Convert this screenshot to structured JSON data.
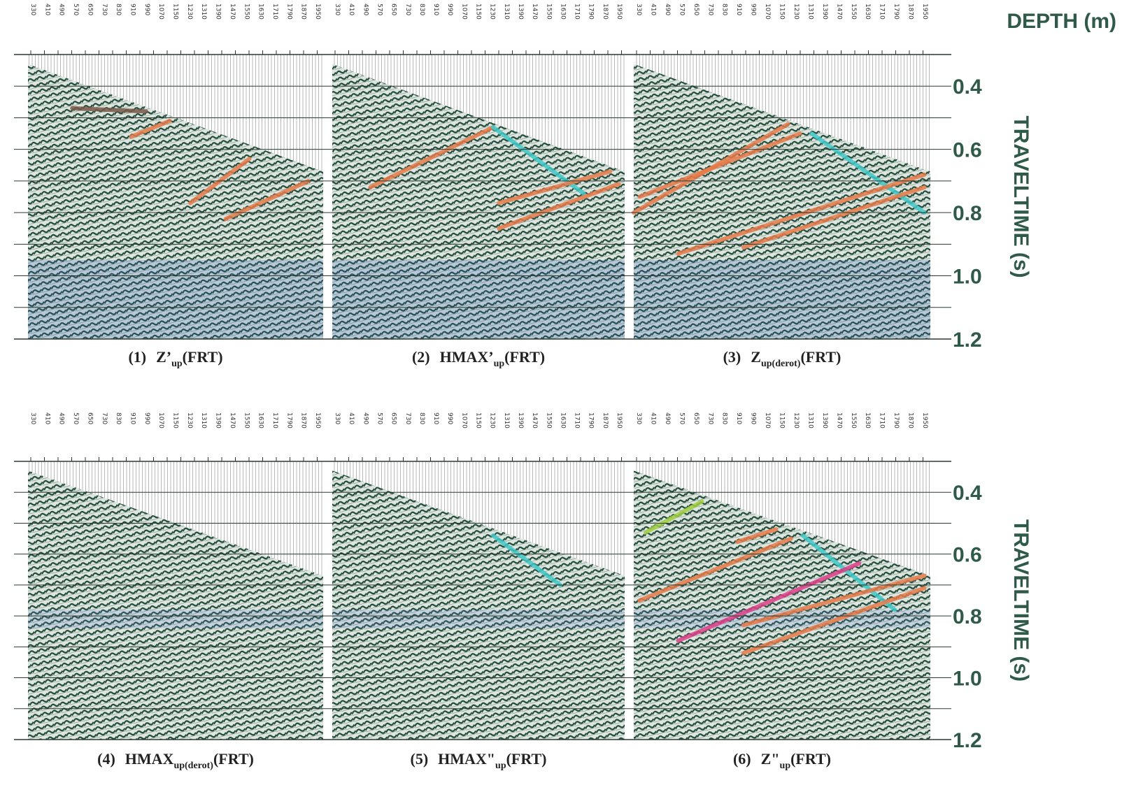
{
  "axis_titles": {
    "depth": "DEPTH (m)",
    "traveltime": "TRAVELTIME (s)"
  },
  "depth_labels": [
    "330",
    "410",
    "490",
    "570",
    "650",
    "730",
    "830",
    "910",
    "990",
    "1070",
    "1150",
    "1230",
    "1310",
    "1390",
    "1470",
    "1550",
    "1630",
    "1710",
    "1790",
    "1870",
    "1950"
  ],
  "time_labels": [
    "0.4",
    "0.6",
    "0.8",
    "1.0",
    "1.2"
  ],
  "panels": [
    {
      "number": "(1)",
      "name": "Z’",
      "subscript": "up",
      "suffix": "(FRT)"
    },
    {
      "number": "(2)",
      "name": "HMAX’",
      "subscript": "up",
      "suffix": "(FRT)"
    },
    {
      "number": "(3)",
      "name": "Z",
      "subscript": "up(derot)",
      "suffix": "(FRT)"
    },
    {
      "number": "(4)",
      "name": "HMAX",
      "subscript": "up(derot)",
      "suffix": "(FRT)"
    },
    {
      "number": "(5)",
      "name": "HMAX\"",
      "subscript": "up",
      "suffix": "(FRT)"
    },
    {
      "number": "(6)",
      "name": "Z\"",
      "subscript": "up",
      "suffix": "(FRT)"
    }
  ]
}
